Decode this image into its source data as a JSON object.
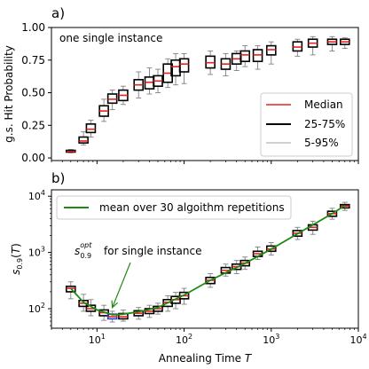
{
  "colors": {
    "median": "#e8211d",
    "box": "#000000",
    "whisker": "#808080",
    "mean_line": "#1f8a12",
    "highlight_box": "#1f3fd6",
    "annotation": "#1f8a12"
  },
  "chart_data": [
    {
      "type": "boxplot",
      "panel_label": "a)",
      "inset_text": "one single instance",
      "ylabel": "g.s. Hit Probability",
      "xlabel": "",
      "xscale": "log",
      "xlim": [
        3,
        10000
      ],
      "ylim": [
        -0.02,
        1.0
      ],
      "yticks": [
        0.0,
        0.25,
        0.5,
        0.75,
        1.0
      ],
      "ytick_labels": [
        "0.00",
        "0.25",
        "0.50",
        "0.75",
        "1.00"
      ],
      "legend": {
        "position": "lower right",
        "entries": [
          {
            "label": "Median",
            "style": "median"
          },
          {
            "label": "25-75%",
            "style": "box"
          },
          {
            "label": "5-95%",
            "style": "whisker"
          }
        ]
      },
      "boxes": [
        {
          "x": 5,
          "low": 0.04,
          "q1": 0.045,
          "median": 0.05,
          "q3": 0.058,
          "high": 0.065
        },
        {
          "x": 7,
          "low": 0.1,
          "q1": 0.115,
          "median": 0.13,
          "q3": 0.16,
          "high": 0.2
        },
        {
          "x": 8.5,
          "low": 0.16,
          "q1": 0.195,
          "median": 0.22,
          "q3": 0.26,
          "high": 0.29
        },
        {
          "x": 12,
          "low": 0.28,
          "q1": 0.32,
          "median": 0.36,
          "q3": 0.4,
          "high": 0.45
        },
        {
          "x": 15,
          "low": 0.37,
          "q1": 0.42,
          "median": 0.45,
          "q3": 0.49,
          "high": 0.52
        },
        {
          "x": 20,
          "low": 0.41,
          "q1": 0.44,
          "median": 0.48,
          "q3": 0.52,
          "high": 0.55
        },
        {
          "x": 30,
          "low": 0.46,
          "q1": 0.52,
          "median": 0.56,
          "q3": 0.6,
          "high": 0.66
        },
        {
          "x": 40,
          "low": 0.49,
          "q1": 0.53,
          "median": 0.58,
          "q3": 0.62,
          "high": 0.69
        },
        {
          "x": 50,
          "low": 0.5,
          "q1": 0.55,
          "median": 0.59,
          "q3": 0.63,
          "high": 0.68
        },
        {
          "x": 65,
          "low": 0.54,
          "q1": 0.58,
          "median": 0.65,
          "q3": 0.72,
          "high": 0.76
        },
        {
          "x": 80,
          "low": 0.56,
          "q1": 0.63,
          "median": 0.7,
          "q3": 0.75,
          "high": 0.8
        },
        {
          "x": 100,
          "low": 0.57,
          "q1": 0.66,
          "median": 0.72,
          "q3": 0.76,
          "high": 0.8
        },
        {
          "x": 200,
          "low": 0.64,
          "q1": 0.69,
          "median": 0.73,
          "q3": 0.78,
          "high": 0.82
        },
        {
          "x": 300,
          "low": 0.63,
          "q1": 0.68,
          "median": 0.72,
          "q3": 0.76,
          "high": 0.8
        },
        {
          "x": 400,
          "low": 0.67,
          "q1": 0.72,
          "median": 0.76,
          "q3": 0.8,
          "high": 0.82
        },
        {
          "x": 500,
          "low": 0.7,
          "q1": 0.74,
          "median": 0.79,
          "q3": 0.82,
          "high": 0.86
        },
        {
          "x": 700,
          "low": 0.68,
          "q1": 0.74,
          "median": 0.79,
          "q3": 0.83,
          "high": 0.86
        },
        {
          "x": 1000,
          "low": 0.72,
          "q1": 0.79,
          "median": 0.83,
          "q3": 0.86,
          "high": 0.89
        },
        {
          "x": 2000,
          "low": 0.78,
          "q1": 0.82,
          "median": 0.85,
          "q3": 0.89,
          "high": 0.91
        },
        {
          "x": 3000,
          "low": 0.79,
          "q1": 0.85,
          "median": 0.88,
          "q3": 0.91,
          "high": 0.93
        },
        {
          "x": 5000,
          "low": 0.82,
          "q1": 0.87,
          "median": 0.89,
          "q3": 0.91,
          "high": 0.93
        },
        {
          "x": 7000,
          "low": 0.84,
          "q1": 0.87,
          "median": 0.89,
          "q3": 0.91,
          "high": 0.92
        }
      ]
    },
    {
      "type": "boxplot",
      "panel_label": "b)",
      "ylabel": "s_0.9(T)",
      "xlabel": "Annealing Time T",
      "xscale": "log",
      "yscale": "log",
      "xlim": [
        3,
        10000
      ],
      "ylim": [
        45,
        13000
      ],
      "xticks": [
        10,
        100,
        1000,
        10000
      ],
      "yticks": [
        100,
        1000,
        10000
      ],
      "legend": {
        "position": "upper left",
        "entries": [
          {
            "label": "mean over 30 algoithm repetitions",
            "style": "mean_line"
          }
        ]
      },
      "annotation": {
        "label_symbol": "s_0.9^opt",
        "label_text": "for single instance",
        "target_x": 15,
        "target_y": 105
      },
      "mean_line": {
        "x": [
          5,
          7,
          10,
          15,
          20,
          30,
          50,
          100,
          200,
          500,
          1000,
          2000,
          5000,
          7000
        ],
        "y": [
          230,
          130,
          95,
          78,
          80,
          88,
          105,
          175,
          320,
          640,
          1150,
          2150,
          4900,
          6800
        ]
      },
      "boxes": [
        {
          "x": 5,
          "low": 150,
          "q1": 200,
          "median": 230,
          "q3": 250,
          "high": 300
        },
        {
          "x": 7,
          "low": 90,
          "q1": 110,
          "median": 125,
          "q3": 140,
          "high": 180
        },
        {
          "x": 8.5,
          "low": 75,
          "q1": 90,
          "median": 100,
          "q3": 115,
          "high": 145
        },
        {
          "x": 12,
          "low": 62,
          "q1": 75,
          "median": 85,
          "q3": 95,
          "high": 115
        },
        {
          "x": 15,
          "low": 58,
          "q1": 66,
          "median": 72,
          "q3": 80,
          "high": 90,
          "highlight": true
        },
        {
          "x": 20,
          "low": 60,
          "q1": 66,
          "median": 72,
          "q3": 82,
          "high": 95
        },
        {
          "x": 30,
          "low": 65,
          "q1": 75,
          "median": 83,
          "q3": 92,
          "high": 105
        },
        {
          "x": 40,
          "low": 70,
          "q1": 82,
          "median": 90,
          "q3": 100,
          "high": 115
        },
        {
          "x": 50,
          "low": 80,
          "q1": 90,
          "median": 100,
          "q3": 110,
          "high": 125
        },
        {
          "x": 65,
          "low": 90,
          "q1": 110,
          "median": 130,
          "q3": 145,
          "high": 170
        },
        {
          "x": 80,
          "low": 100,
          "q1": 125,
          "median": 145,
          "q3": 165,
          "high": 195
        },
        {
          "x": 100,
          "low": 120,
          "q1": 150,
          "median": 170,
          "q3": 195,
          "high": 230
        },
        {
          "x": 200,
          "low": 240,
          "q1": 280,
          "median": 320,
          "q3": 360,
          "high": 420
        },
        {
          "x": 300,
          "low": 380,
          "q1": 430,
          "median": 480,
          "q3": 540,
          "high": 620
        },
        {
          "x": 400,
          "low": 420,
          "q1": 500,
          "median": 560,
          "q3": 620,
          "high": 720
        },
        {
          "x": 500,
          "low": 500,
          "q1": 580,
          "median": 650,
          "q3": 720,
          "high": 830
        },
        {
          "x": 700,
          "low": 750,
          "q1": 850,
          "median": 950,
          "q3": 1050,
          "high": 1250
        },
        {
          "x": 1000,
          "low": 900,
          "q1": 1050,
          "median": 1150,
          "q3": 1300,
          "high": 1500
        },
        {
          "x": 2000,
          "low": 1700,
          "q1": 1950,
          "median": 2200,
          "q3": 2450,
          "high": 2800
        },
        {
          "x": 3000,
          "low": 2100,
          "q1": 2500,
          "median": 2800,
          "q3": 3100,
          "high": 3600
        },
        {
          "x": 5000,
          "low": 3900,
          "q1": 4400,
          "median": 4900,
          "q3": 5400,
          "high": 6100
        },
        {
          "x": 7000,
          "low": 5600,
          "q1": 6200,
          "median": 6700,
          "q3": 7100,
          "high": 7800
        }
      ]
    }
  ]
}
